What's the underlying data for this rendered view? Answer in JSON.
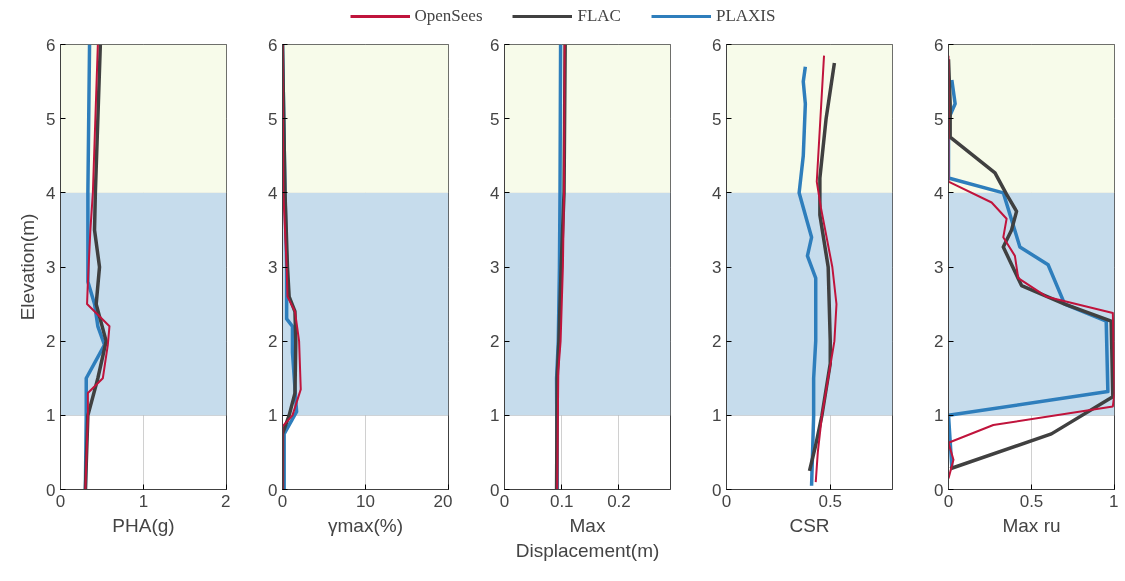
{
  "chart_data": [
    {
      "type": "line",
      "xlabel": "PHA(g)",
      "ylabel": "Elevation(m)",
      "xlim": [
        0,
        2
      ],
      "xticks": [
        0,
        1,
        2
      ],
      "ylim": [
        0,
        6
      ],
      "yticks": [
        0,
        1,
        2,
        3,
        4,
        5,
        6
      ],
      "grid": true,
      "line_style": "solid",
      "marker": "none",
      "bands": [
        {
          "axis": "y",
          "from": 1,
          "to": 4,
          "color": "#c6dcec"
        },
        {
          "axis": "y",
          "from": 4,
          "to": 6,
          "color": "#f7fbea"
        }
      ],
      "series": [
        {
          "color": "#c0143c",
          "x": [
            0.45,
            0.39,
            0.36,
            0.33,
            0.32,
            0.59,
            0.57,
            0.51,
            0.33,
            0.33,
            0.3
          ],
          "values": [
            6,
            4,
            3.5,
            2.8,
            2.5,
            2.2,
            1.95,
            1.5,
            1.3,
            1.0,
            0
          ]
        },
        {
          "color": "#404040",
          "x": [
            0.48,
            0.42,
            0.41,
            0.47,
            0.43,
            0.55,
            0.45,
            0.33,
            0.3
          ],
          "values": [
            6,
            4,
            3.5,
            3,
            2.5,
            2,
            1.5,
            1.0,
            0
          ]
        },
        {
          "color": "#2e7ebc",
          "x": [
            0.35,
            0.33,
            0.33,
            0.41,
            0.45,
            0.53,
            0.31,
            0.31,
            0.31,
            0.3
          ],
          "values": [
            6,
            4,
            2.8,
            2.5,
            2.2,
            1.95,
            1.5,
            1.3,
            1.0,
            0
          ]
        }
      ]
    },
    {
      "type": "line",
      "xlabel": "γmax(%)",
      "xlim": [
        0,
        20
      ],
      "xticks": [
        0,
        10,
        20
      ],
      "ylim": [
        0,
        6
      ],
      "yticks": [
        0,
        1,
        2,
        3,
        4,
        5,
        6
      ],
      "grid": true,
      "line_style": "solid",
      "marker": "none",
      "bands": [
        {
          "axis": "y",
          "from": 1,
          "to": 4,
          "color": "#c6dcec"
        },
        {
          "axis": "y",
          "from": 4,
          "to": 6,
          "color": "#f7fbea"
        }
      ],
      "series": [
        {
          "color": "#c0143c",
          "x": [
            0,
            0.1,
            0.5,
            0.6,
            1.5,
            2.0,
            2.2,
            1.2,
            0,
            0
          ],
          "values": [
            6,
            4,
            3,
            2.6,
            2.4,
            2,
            1.35,
            1.0,
            0.85,
            0
          ]
        },
        {
          "color": "#404040",
          "x": [
            0,
            0.3,
            0.6,
            0.8,
            1.5,
            1.6,
            1.5,
            0.8,
            0,
            0
          ],
          "values": [
            6,
            4,
            3,
            2.6,
            2.4,
            2,
            1.3,
            1.0,
            0.75,
            0
          ]
        },
        {
          "color": "#2e7ebc",
          "x": [
            0,
            0.3,
            0.5,
            0.5,
            0.5,
            1.2,
            1.2,
            1.7,
            0.2,
            0.2
          ],
          "values": [
            6,
            4,
            3,
            2.6,
            2.3,
            2.2,
            1.85,
            1.05,
            0.75,
            0
          ]
        }
      ]
    },
    {
      "type": "line",
      "xlabel": "Max Displacement(m)",
      "xlim": [
        0,
        0.29
      ],
      "xticks": [
        0,
        0.1,
        0.2
      ],
      "ylim": [
        0,
        6
      ],
      "yticks": [
        0,
        1,
        2,
        3,
        4,
        5,
        6
      ],
      "grid": true,
      "line_style": "solid",
      "marker": "none",
      "legend": "top",
      "bands": [
        {
          "axis": "y",
          "from": 1,
          "to": 4,
          "color": "#c6dcec"
        },
        {
          "axis": "y",
          "from": 4,
          "to": 6,
          "color": "#f7fbea"
        }
      ],
      "series": [
        {
          "name": "OpenSees",
          "color": "#c0143c",
          "x": [
            0.105,
            0.104,
            0.102,
            0.098,
            0.094,
            0.092
          ],
          "values": [
            6,
            4,
            3,
            2,
            1.6,
            0
          ]
        },
        {
          "name": "FLAC",
          "color": "#404040",
          "x": [
            0.106,
            0.104,
            0.099,
            0.095,
            0.092,
            0.091
          ],
          "values": [
            6,
            4,
            3,
            2,
            1.5,
            0
          ]
        },
        {
          "name": "PLAXIS",
          "color": "#2e7ebc",
          "x": [
            0.098,
            0.097,
            0.096,
            0.094,
            0.091,
            0.092
          ],
          "values": [
            6,
            4,
            3,
            2,
            1.5,
            0
          ]
        }
      ]
    },
    {
      "type": "line",
      "xlabel": "CSR",
      "xlim": [
        0,
        0.8
      ],
      "xticks": [
        0,
        0.5
      ],
      "ylim": [
        0,
        6
      ],
      "yticks": [
        0,
        1,
        2,
        3,
        4,
        5,
        6
      ],
      "grid": true,
      "line_style": "solid",
      "marker": "none",
      "bands": [
        {
          "axis": "y",
          "from": 1,
          "to": 4,
          "color": "#c6dcec"
        },
        {
          "axis": "y",
          "from": 4,
          "to": 6,
          "color": "#f7fbea"
        }
      ],
      "series": [
        {
          "color": "#c0143c",
          "x": [
            0.47,
            0.435,
            0.455,
            0.51,
            0.53,
            0.52,
            0.49,
            0.46,
            0.44,
            0.43
          ],
          "values": [
            5.85,
            4.15,
            3.8,
            3,
            2.5,
            2,
            1.5,
            1,
            0.5,
            0.1
          ]
        },
        {
          "color": "#404040",
          "x": [
            0.52,
            0.48,
            0.45,
            0.45,
            0.49,
            0.5,
            0.5,
            0.46,
            0.43,
            0.4
          ],
          "values": [
            5.75,
            5,
            4.2,
            3.7,
            3,
            2,
            1.7,
            1,
            0.6,
            0.25
          ]
        },
        {
          "color": "#2e7ebc",
          "x": [
            0.38,
            0.37,
            0.38,
            0.37,
            0.35,
            0.39,
            0.41,
            0.39,
            0.43,
            0.43,
            0.43,
            0.42,
            0.42,
            0.41
          ],
          "values": [
            5.7,
            5.5,
            5.2,
            4.5,
            4.0,
            3.6,
            3.4,
            3.15,
            2.85,
            2.5,
            2,
            1.5,
            1,
            0.05
          ]
        }
      ]
    },
    {
      "type": "line",
      "xlabel": "Max ru",
      "xlim": [
        0,
        1
      ],
      "xticks": [
        0,
        0.5,
        1
      ],
      "ylim": [
        0,
        6
      ],
      "yticks": [
        0,
        1,
        2,
        3,
        4,
        5,
        6
      ],
      "grid": true,
      "line_style": "solid",
      "marker": "none",
      "bands": [
        {
          "axis": "y",
          "from": 1,
          "to": 4,
          "color": "#c6dcec"
        },
        {
          "axis": "y",
          "from": 4,
          "to": 6,
          "color": "#f7fbea"
        }
      ],
      "series": [
        {
          "color": "#c0143c",
          "x": [
            0,
            0,
            0.26,
            0.35,
            0.33,
            0.4,
            0.42,
            0.59,
            0.99,
            1.0,
            0.99,
            0.27,
            0,
            0.03,
            0
          ],
          "values": [
            5.85,
            4.15,
            3.87,
            3.65,
            3.4,
            3.15,
            2.85,
            2.6,
            2.38,
            1.3,
            1.12,
            0.87,
            0.63,
            0.4,
            0.15
          ]
        },
        {
          "color": "#404040",
          "x": [
            0,
            0.01,
            0.01,
            0.28,
            0.35,
            0.41,
            0.38,
            0.33,
            0.44,
            0.7,
            0.98,
            0.99,
            0.62,
            0.01
          ],
          "values": [
            5.8,
            5.2,
            4.75,
            4.27,
            3.98,
            3.75,
            3.5,
            3.27,
            2.75,
            2.5,
            2.27,
            1.25,
            0.75,
            0.28
          ]
        },
        {
          "color": "#2e7ebc",
          "x": [
            0.02,
            0.04,
            0,
            0,
            0.33,
            0.43,
            0.6,
            0.7,
            0.95,
            0.96,
            0,
            0.02
          ],
          "values": [
            5.52,
            5.2,
            5.0,
            4.2,
            4.0,
            3.27,
            3.03,
            2.5,
            2.27,
            1.32,
            1.0,
            0.3
          ]
        }
      ]
    }
  ]
}
